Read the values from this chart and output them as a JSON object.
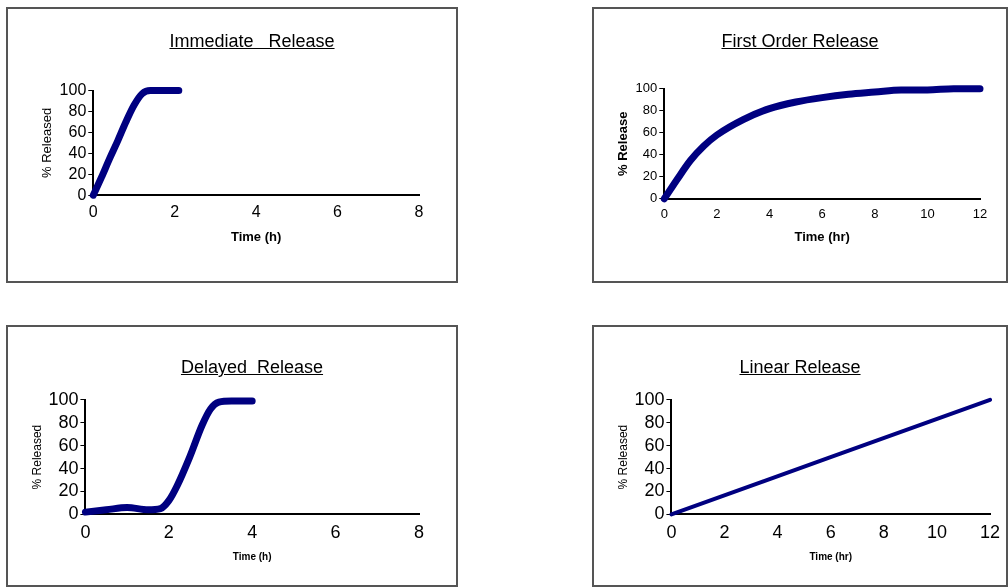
{
  "chart_data": [
    {
      "type": "line",
      "title": "Immediate   Release",
      "xlabel": "Time (h)",
      "ylabel": "% Released",
      "xlim": [
        0,
        8
      ],
      "xticks": [
        0,
        2,
        4,
        6,
        8
      ],
      "ylim": [
        0,
        100
      ],
      "yticks": [
        0,
        20,
        40,
        60,
        80,
        100
      ],
      "marker": "none",
      "line_style": "solid",
      "series": [
        {
          "color": "#000080",
          "x": [
            0,
            0.2,
            0.4,
            0.6,
            0.8,
            1.0,
            1.2,
            1.4,
            1.6,
            1.8,
            2.0,
            2.1
          ],
          "values": [
            0,
            17,
            35,
            52,
            70,
            86,
            97,
            100,
            100,
            100,
            100,
            100
          ]
        }
      ]
    },
    {
      "type": "line",
      "title": "First Order Release",
      "xlabel": "Time (hr)",
      "ylabel": "% Release",
      "xlim": [
        0,
        12
      ],
      "xticks": [
        0,
        2,
        4,
        6,
        8,
        10,
        12
      ],
      "ylim": [
        0,
        100
      ],
      "yticks": [
        0,
        20,
        40,
        60,
        80,
        100
      ],
      "marker": "none",
      "line_style": "solid",
      "series": [
        {
          "color": "#000080",
          "x": [
            0,
            0.5,
            1,
            1.5,
            2,
            3,
            4,
            5,
            6,
            7,
            8,
            9,
            10,
            11,
            12
          ],
          "values": [
            0,
            18,
            35,
            48,
            58,
            72,
            82,
            88,
            92,
            95,
            97,
            99,
            99,
            100,
            100
          ]
        }
      ]
    },
    {
      "type": "line",
      "title": "Delayed  Release",
      "xlabel": "Time (h)",
      "ylabel": "% Released",
      "xlim": [
        0,
        8
      ],
      "xticks": [
        0,
        2,
        4,
        6,
        8
      ],
      "ylim": [
        0,
        100
      ],
      "yticks": [
        0,
        20,
        40,
        60,
        80,
        100
      ],
      "marker": "none",
      "line_style": "solid",
      "series": [
        {
          "color": "#000080",
          "x": [
            0,
            0.5,
            1,
            1.5,
            1.8,
            2,
            2.2,
            2.5,
            2.8,
            3,
            3.2,
            3.5,
            4
          ],
          "values": [
            2,
            4,
            6,
            4,
            5,
            12,
            25,
            50,
            78,
            92,
            98,
            99,
            99
          ]
        }
      ]
    },
    {
      "type": "line",
      "title": "Linear Release",
      "xlabel": "Time (hr)",
      "ylabel": "% Released",
      "xlim": [
        0,
        12
      ],
      "xticks": [
        0,
        2,
        4,
        6,
        8,
        10,
        12
      ],
      "ylim": [
        0,
        100
      ],
      "yticks": [
        0,
        20,
        40,
        60,
        80,
        100
      ],
      "marker": "none",
      "line_style": "solid",
      "series": [
        {
          "color": "#000080",
          "x": [
            0,
            12
          ],
          "values": [
            0,
            100
          ]
        }
      ]
    }
  ]
}
